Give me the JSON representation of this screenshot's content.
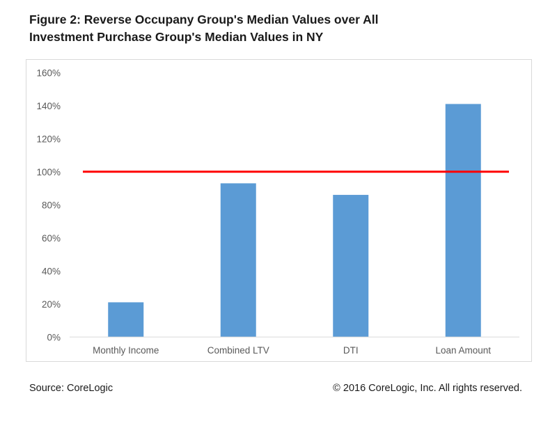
{
  "title_line1": "Figure 2: Reverse Occupany Group's Median Values over All",
  "title_line2": "Investment Purchase Group's Median Values in NY",
  "source": "Source: CoreLogic",
  "copyright": "© 2016 CoreLogic, Inc. All rights reserved.",
  "chart_data": {
    "type": "bar",
    "title": "Figure 2: Reverse Occupany Group's Median Values over All Investment Purchase Group's Median Values in NY",
    "categories": [
      "Monthly Income",
      "Combined LTV",
      "DTI",
      "Loan Amount"
    ],
    "values": [
      21,
      93,
      86,
      141
    ],
    "unit": "%",
    "ylim": [
      0,
      160
    ],
    "yticks": [
      "0%",
      "20%",
      "40%",
      "60%",
      "80%",
      "100%",
      "120%",
      "140%",
      "160%"
    ],
    "reference_line": {
      "value": 100,
      "color": "#ff0000"
    },
    "bar_color": "#5b9bd5",
    "grid": false,
    "legend": "none",
    "xlabel": "",
    "ylabel": ""
  }
}
